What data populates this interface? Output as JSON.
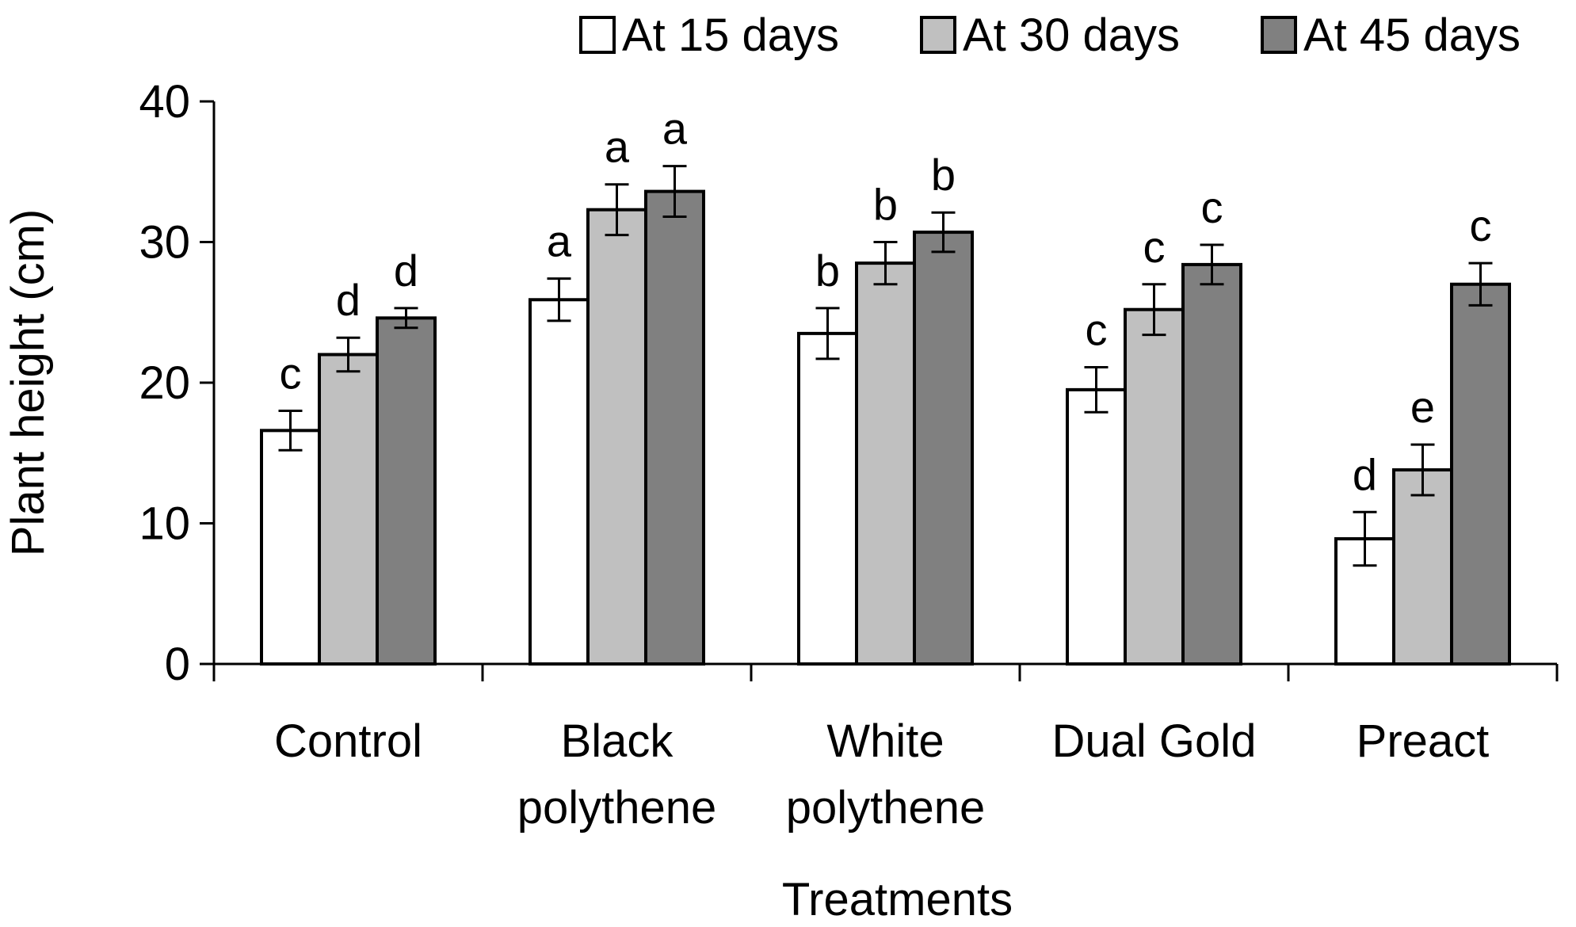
{
  "chart_data": {
    "type": "bar",
    "title": "",
    "xlabel": "Treatments",
    "ylabel": "Plant height (cm)",
    "ylim": [
      0,
      40
    ],
    "yticks": [
      "0",
      "10",
      "20",
      "30",
      "40"
    ],
    "grid": false,
    "legend_position": "top-right",
    "categories": [
      [
        "Control"
      ],
      [
        "Black",
        "polythene"
      ],
      [
        "White",
        "polythene"
      ],
      [
        "Dual Gold"
      ],
      [
        "Preact"
      ]
    ],
    "series": [
      {
        "name": "At 15 days",
        "color": "#ffffff",
        "values": [
          16.6,
          25.9,
          23.5,
          19.5,
          8.9
        ],
        "errors": [
          1.4,
          1.5,
          1.8,
          1.6,
          1.9
        ],
        "letters": [
          "c",
          "a",
          "b",
          "c",
          "d"
        ]
      },
      {
        "name": "At 30 days",
        "color": "#c0c0c0",
        "values": [
          22.0,
          32.3,
          28.5,
          25.2,
          13.8
        ],
        "errors": [
          1.2,
          1.8,
          1.5,
          1.8,
          1.8
        ],
        "letters": [
          "d",
          "a",
          "b",
          "c",
          "e"
        ]
      },
      {
        "name": "At 45 days",
        "color": "#808080",
        "values": [
          24.6,
          33.6,
          30.7,
          28.4,
          27.0
        ],
        "errors": [
          0.7,
          1.8,
          1.4,
          1.4,
          1.5
        ],
        "letters": [
          "d",
          "a",
          "b",
          "c",
          "c"
        ]
      }
    ]
  }
}
